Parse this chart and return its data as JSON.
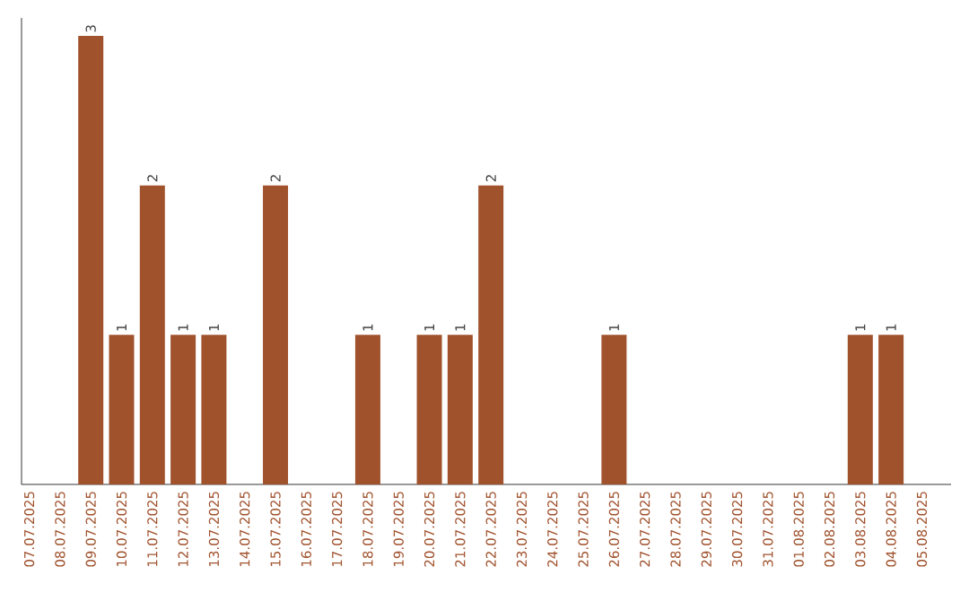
{
  "chart_data": {
    "type": "bar",
    "categories": [
      "07.07.2025",
      "08.07.2025",
      "09.07.2025",
      "10.07.2025",
      "11.07.2025",
      "12.07.2025",
      "13.07.2025",
      "14.07.2025",
      "15.07.2025",
      "16.07.2025",
      "17.07.2025",
      "18.07.2025",
      "19.07.2025",
      "20.07.2025",
      "21.07.2025",
      "22.07.2025",
      "23.07.2025",
      "24.07.2025",
      "25.07.2025",
      "26.07.2025",
      "27.07.2025",
      "28.07.2025",
      "29.07.2025",
      "30.07.2025",
      "31.07.2025",
      "01.08.2025",
      "02.08.2025",
      "03.08.2025",
      "04.08.2025",
      "05.08.2025"
    ],
    "values": [
      0,
      0,
      3,
      1,
      2,
      1,
      1,
      0,
      2,
      0,
      0,
      1,
      0,
      1,
      1,
      2,
      0,
      0,
      0,
      1,
      0,
      0,
      0,
      0,
      0,
      0,
      0,
      1,
      1,
      0
    ],
    "value_labels": [
      null,
      null,
      "3",
      "1",
      "2",
      "1",
      "1",
      null,
      "2",
      null,
      null,
      "1",
      null,
      "1",
      "1",
      "2",
      null,
      null,
      null,
      "1",
      null,
      null,
      null,
      null,
      null,
      null,
      null,
      "1",
      "1",
      null
    ],
    "color": "#a0522d",
    "tick_labels": "x"
  }
}
